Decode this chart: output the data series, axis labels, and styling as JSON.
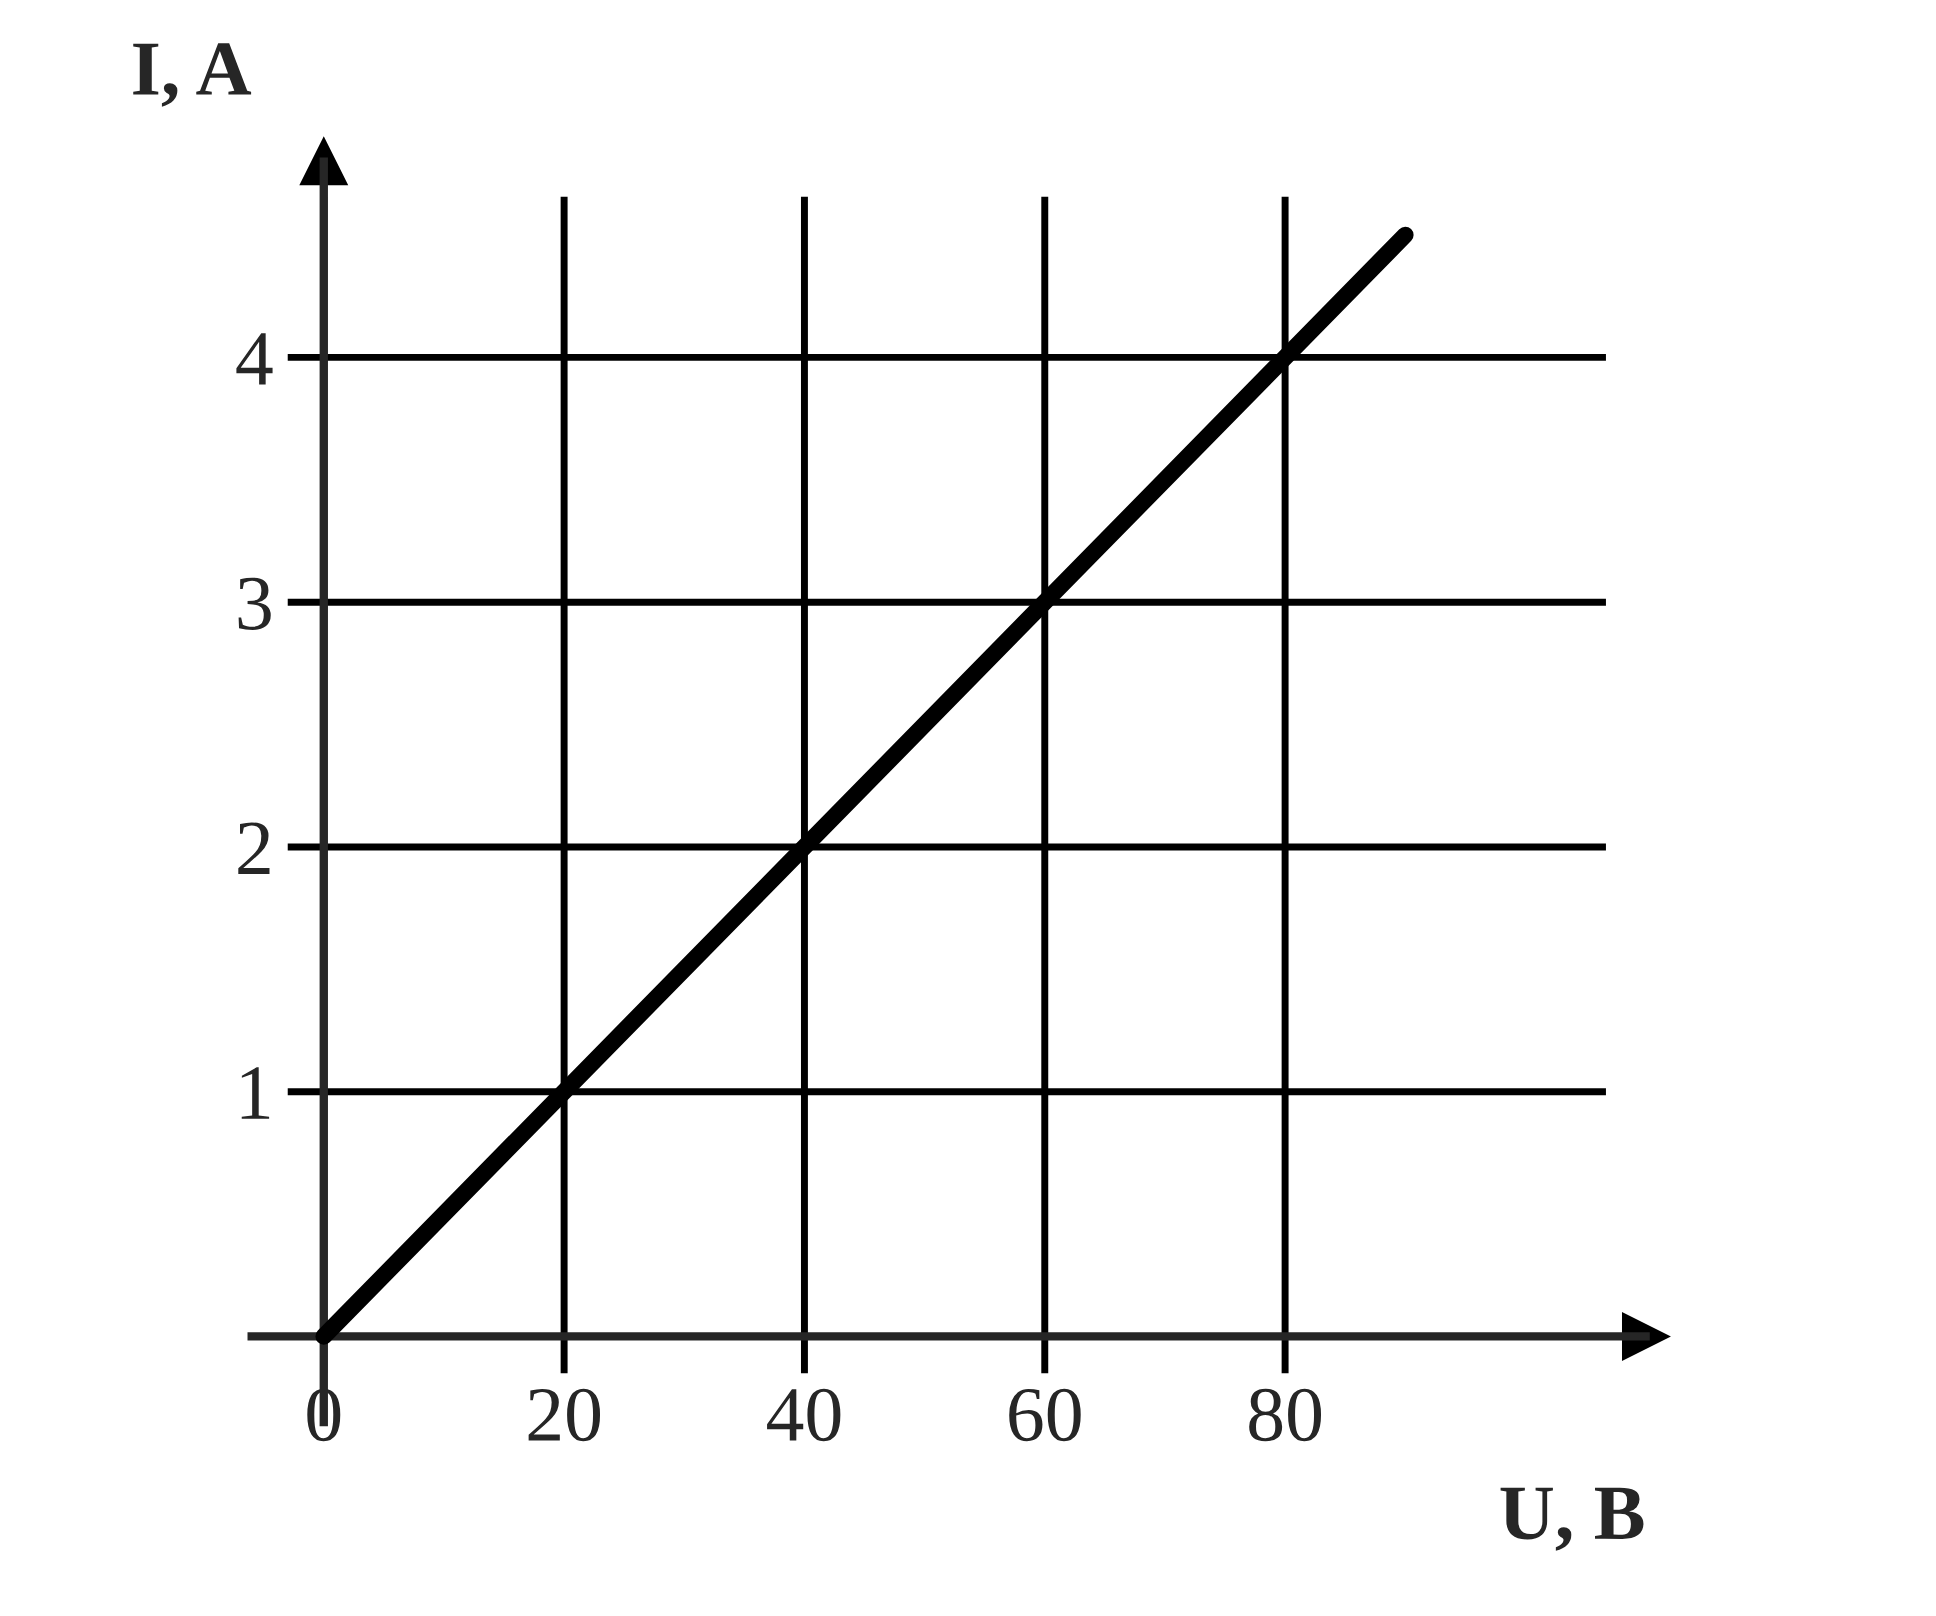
{
  "chart_data": {
    "type": "line",
    "xlabel": "U, B",
    "ylabel": "I, A",
    "x": [
      0,
      90
    ],
    "values": [
      0,
      4.5
    ],
    "color": "#000000",
    "xlim": [
      -6,
      110
    ],
    "ylim": [
      -0.35,
      4.8
    ],
    "xticks": [
      0,
      20,
      40,
      60,
      80
    ],
    "yticks": [
      1,
      2,
      3,
      4
    ],
    "grid": true
  }
}
